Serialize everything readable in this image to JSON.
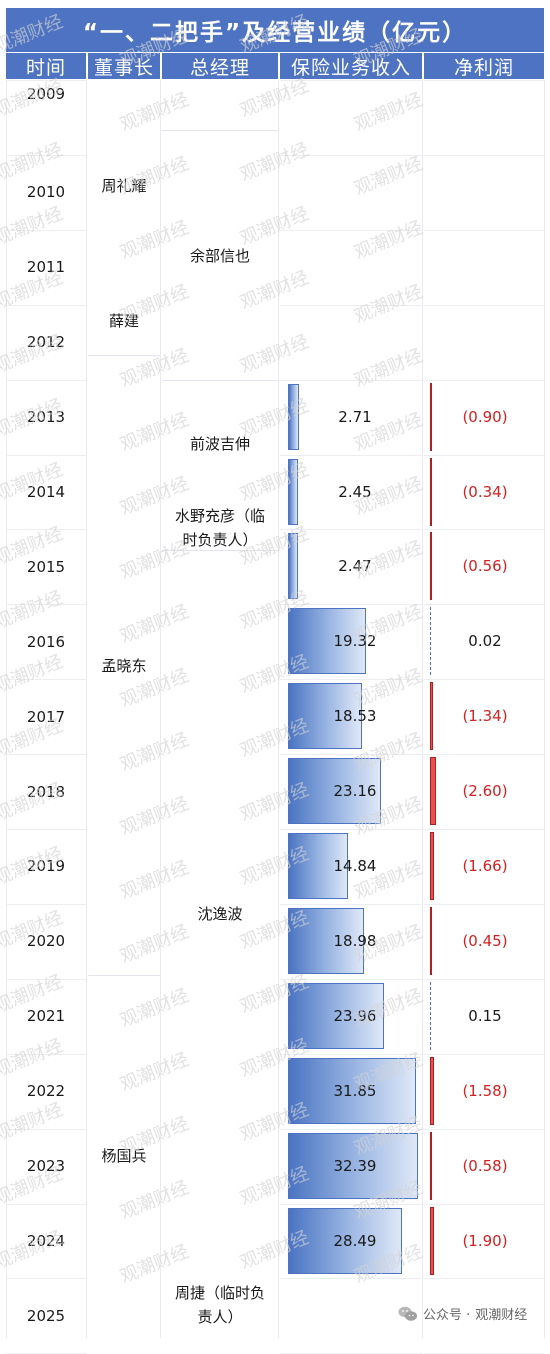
{
  "title": "“一、二把手”及经营业绩（亿元）",
  "headers": {
    "time": "时间",
    "chairman": "董事长",
    "gm": "总经理",
    "revenue": "保险业务收入",
    "profit": "净利润"
  },
  "years": [
    "2009",
    "2010",
    "2011",
    "2012",
    "2013",
    "2014",
    "2015",
    "2016",
    "2017",
    "2018",
    "2019",
    "2020",
    "2021",
    "2022",
    "2023",
    "2024",
    "2025"
  ],
  "chairmen": [
    "周礼耀",
    "薛建",
    "孟晓东",
    "杨国兵"
  ],
  "gms": [
    "余部信也",
    "前波吉伸",
    "水野充彦（临时负责人）",
    "沈逸波",
    "周捷（临时负责人）"
  ],
  "gm_lines": {
    "mizuno_1": "水野充彦（临",
    "mizuno_2": "时负责人）",
    "zhou_1": "周捷（临时负",
    "zhou_2": "责人）"
  },
  "rows": [
    {
      "year": "2013",
      "revenue": "2.71",
      "revenue_value": 2.71,
      "profit": "(0.90)",
      "profit_value": -0.9
    },
    {
      "year": "2014",
      "revenue": "2.45",
      "revenue_value": 2.45,
      "profit": "(0.34)",
      "profit_value": -0.34
    },
    {
      "year": "2015",
      "revenue": "2.47",
      "revenue_value": 2.47,
      "profit": "(0.56)",
      "profit_value": -0.56
    },
    {
      "year": "2016",
      "revenue": "19.32",
      "revenue_value": 19.32,
      "profit": "0.02",
      "profit_value": 0.02
    },
    {
      "year": "2017",
      "revenue": "18.53",
      "revenue_value": 18.53,
      "profit": "(1.34)",
      "profit_value": -1.34
    },
    {
      "year": "2018",
      "revenue": "23.16",
      "revenue_value": 23.16,
      "profit": "(2.60)",
      "profit_value": -2.6
    },
    {
      "year": "2019",
      "revenue": "14.84",
      "revenue_value": 14.84,
      "profit": "(1.66)",
      "profit_value": -1.66
    },
    {
      "year": "2020",
      "revenue": "18.98",
      "revenue_value": 18.98,
      "profit": "(0.45)",
      "profit_value": -0.45
    },
    {
      "year": "2021",
      "revenue": "23.96",
      "revenue_value": 23.96,
      "profit": "0.15",
      "profit_value": 0.15
    },
    {
      "year": "2022",
      "revenue": "31.85",
      "revenue_value": 31.85,
      "profit": "(1.58)",
      "profit_value": -1.58
    },
    {
      "year": "2023",
      "revenue": "32.39",
      "revenue_value": 32.39,
      "profit": "(0.58)",
      "profit_value": -0.58
    },
    {
      "year": "2024",
      "revenue": "28.49",
      "revenue_value": 28.49,
      "profit": "(1.90)",
      "profit_value": -1.9
    }
  ],
  "watermark": "观潮财经",
  "footer": {
    "prefix": "公众号 · ",
    "name": "观潮财经"
  },
  "colors": {
    "header_bg": "#4d73c2",
    "bar": "#4a74c2",
    "negative": "#d42020",
    "negative_bar": "#e85050"
  }
}
